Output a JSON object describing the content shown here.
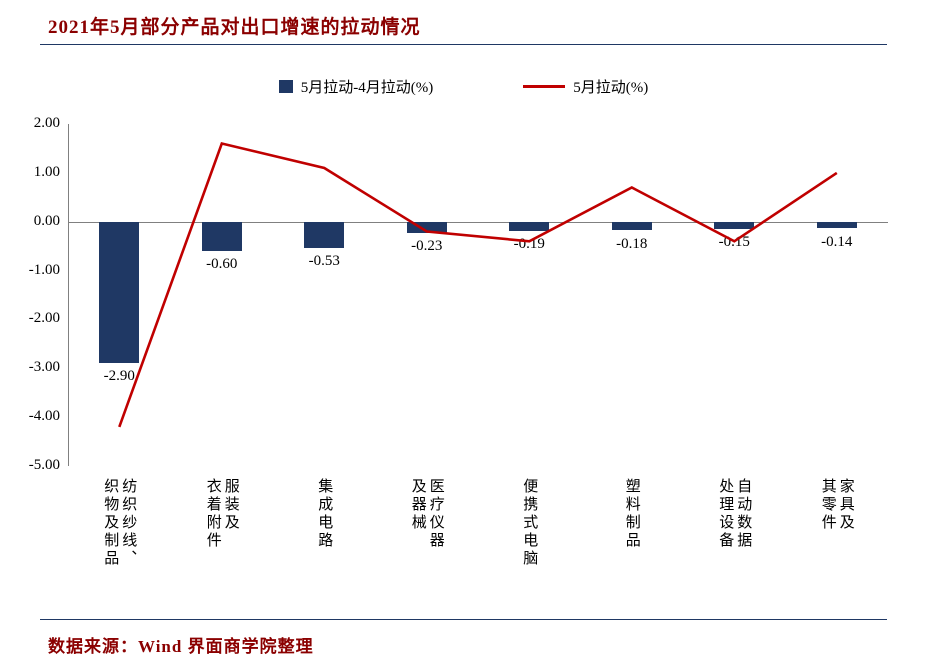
{
  "header": {
    "title": "2021年5月部分产品对出口增速的拉动情况"
  },
  "footer": {
    "source": "数据来源：Wind 界面商学院整理"
  },
  "legend": [
    {
      "label": "5月拉动-4月拉动(%)",
      "type": "bar",
      "color": "#1F3864"
    },
    {
      "label": "5月拉动(%)",
      "type": "line",
      "color": "#C00000"
    }
  ],
  "colors": {
    "bar": "#1F3864",
    "line": "#C00000",
    "title": "#8B0000",
    "divider": "#1F3864",
    "axis": "#808080"
  },
  "chart_data": {
    "type": "bar+line",
    "title": "2021年5月部分产品对出口增速的拉动情况",
    "categories": [
      "纺织纱线、\n织物及制品",
      "服装及\n衣着附件",
      "集成电路",
      "医疗仪器\n及器械",
      "便携式电脑",
      "塑料制品",
      "自动数据\n处理设备",
      "家具及\n其零件"
    ],
    "series": [
      {
        "name": "5月拉动-4月拉动(%)",
        "type": "bar",
        "color": "#1F3864",
        "values": [
          -2.9,
          -0.6,
          -0.53,
          -0.23,
          -0.19,
          -0.18,
          -0.15,
          -0.14
        ],
        "labels": [
          "-2.90",
          "-0.60",
          "-0.53",
          "-0.23",
          "-0.19",
          "-0.18",
          "-0.15",
          "-0.14"
        ]
      },
      {
        "name": "5月拉动(%)",
        "type": "line",
        "color": "#C00000",
        "values": [
          -4.2,
          1.6,
          1.1,
          -0.2,
          -0.4,
          0.7,
          -0.4,
          1.0
        ]
      }
    ],
    "ylim": [
      -5,
      2
    ],
    "yticks": [
      2,
      1,
      0,
      -1,
      -2,
      -3,
      -4,
      -5
    ],
    "ytick_labels": [
      "2.00",
      "1.00",
      "0.00",
      "-1.00",
      "-2.00",
      "-3.00",
      "-4.00",
      "-5.00"
    ],
    "grid": false,
    "legend_position": "top"
  }
}
